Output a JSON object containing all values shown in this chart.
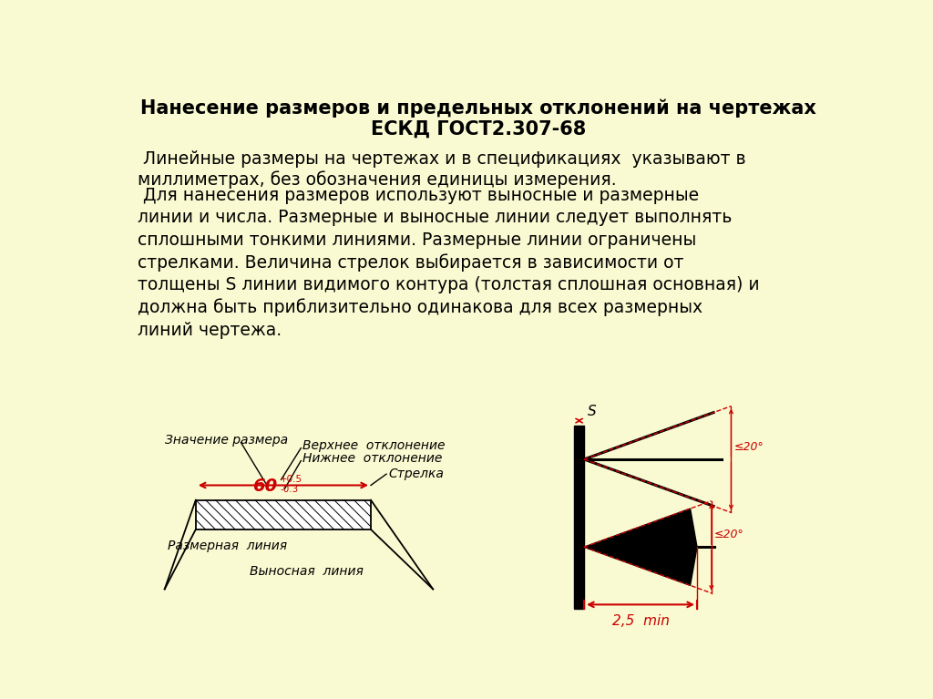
{
  "title_line1": "Нанесение размеров и предельных отклонений на чертежах",
  "title_line2": "ЕСКД ГОСТ2.307-68",
  "bg_color": "#FAFAD2",
  "red_color": "#CC0000",
  "black_color": "#000000",
  "p1": " Линейные размеры на чертежах и в спецификациях  указывают в\nмиллиметрах, без обозначения единицы измерения.",
  "p2_line1": " Для нанесения размеров используют выносные и размерные",
  "p2_line2": "линии и числа. Размерные и выносные линии следует выполнять",
  "p2_line3": "сплошными тонкими линиями. Размерные линии ограничены",
  "p2_line4": "стрелками. Величина стрелок выбирается в зависимости от",
  "p2_line5": "толщены S линии видимого контура (толстая сплошная основная) и",
  "p2_line6": "должна быть приблизительно одинакова для всех размерных",
  "p2_line7": "линий чертежа.",
  "label_znachenie": "Значение размера",
  "label_verkhnee": "Верхнее  отклонение",
  "label_nizhnee": "Нижнее  отклонение",
  "label_strelka": "Стрелка",
  "label_razmernaya": "Размерная  линия",
  "label_vynosnaya": "Выносная  линия",
  "label_60": "60",
  "label_plus": "+0.5",
  "label_minus": "-0.3",
  "label_S": "S",
  "label_20_top": "≤20°",
  "label_20_bot": "≤20°",
  "label_25": "2,5  min",
  "title_fontsize": 15,
  "body_fontsize": 13.5,
  "diagram_fontsize": 10
}
